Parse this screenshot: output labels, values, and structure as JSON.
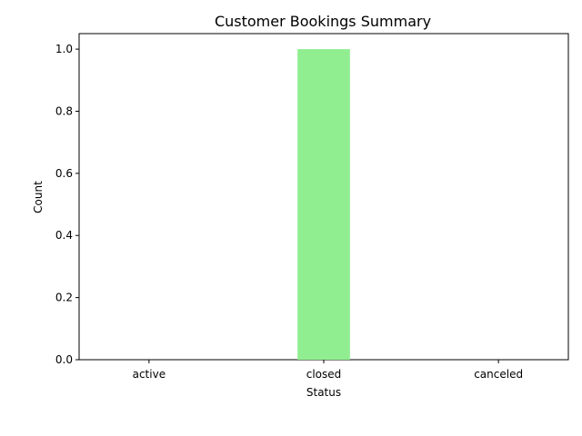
{
  "chart_data": {
    "type": "bar",
    "title": "Customer Bookings Summary",
    "xlabel": "Status",
    "ylabel": "Count",
    "categories": [
      "active",
      "closed",
      "canceled"
    ],
    "values": [
      0,
      1,
      0
    ],
    "ylim": [
      0,
      1.05
    ],
    "yticks": [
      "0.0",
      "0.2",
      "0.4",
      "0.6",
      "0.8",
      "1.0"
    ],
    "ytick_values": [
      0,
      0.2,
      0.4,
      0.6,
      0.8,
      1.0
    ],
    "bar_color": "#90ee90",
    "grid": false,
    "legend": false
  }
}
